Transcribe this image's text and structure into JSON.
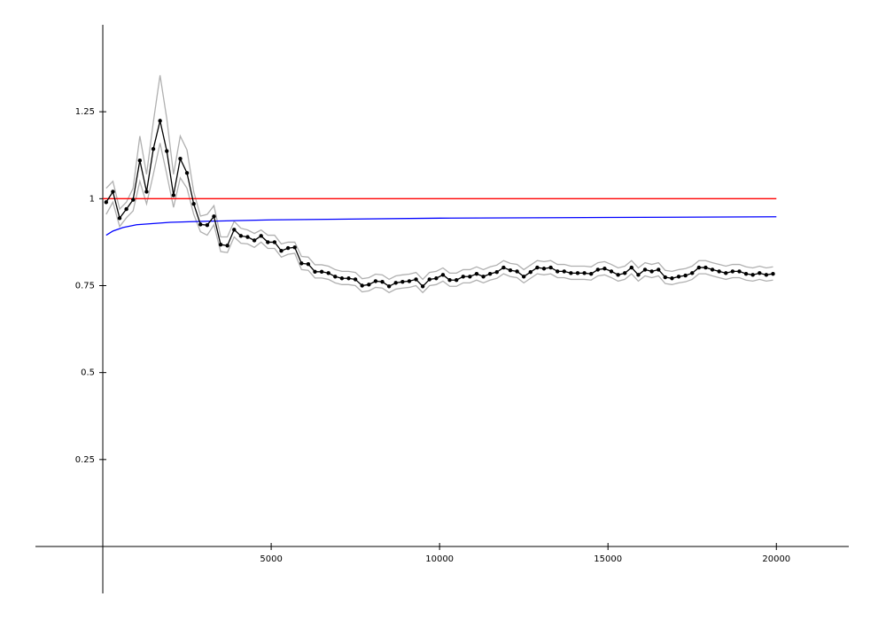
{
  "chart_data": {
    "type": "line",
    "xlim": [
      -2000,
      22150
    ],
    "ylim": [
      -0.135,
      1.5
    ],
    "xticks": [
      5000,
      10000,
      15000,
      20000
    ],
    "yticks": [
      0.25,
      0.5,
      0.75,
      1,
      1.25
    ],
    "series": [
      {
        "color": "#b0b0b0",
        "markers": false,
        "x": [
          100,
          300,
          500,
          700,
          900,
          1100,
          1300,
          1500,
          1700,
          1900,
          2100,
          2300,
          2500,
          2700,
          2900,
          3100,
          3300,
          3500,
          3700,
          3900,
          4100,
          4300,
          4500,
          4700,
          4900,
          5100,
          5300,
          5500,
          5700,
          5900,
          6100,
          6300,
          6500,
          6700,
          6900,
          7100,
          7300,
          7500,
          7700,
          7900,
          8100,
          8300,
          8500,
          8700,
          8900,
          9100,
          9300,
          9500,
          9700,
          9900,
          10100,
          10300,
          10500,
          10700,
          10900,
          11100,
          11300,
          11500,
          11700,
          11900,
          12100,
          12300,
          12500,
          12700,
          12900,
          13100,
          13300,
          13500,
          13700,
          13900,
          14100,
          14300,
          14500,
          14700,
          14900,
          15100,
          15300,
          15500,
          15700,
          15900,
          16100,
          16300,
          16500,
          16700,
          16900,
          17100,
          17300,
          17500,
          17700,
          17900,
          18100,
          18300,
          18500,
          18700,
          18900,
          19100,
          19300,
          19500,
          19700,
          19900
        ],
        "values": [
          1.03,
          1.05,
          0.97,
          0.99,
          1.03,
          1.18,
          1.07,
          1.22,
          1.355,
          1.23,
          1.07,
          1.18,
          1.14,
          1.02,
          0.95,
          0.955,
          0.98,
          0.89,
          0.89,
          0.935,
          0.915,
          0.91,
          0.9,
          0.91,
          0.895,
          0.895,
          0.87,
          0.875,
          0.875,
          0.834,
          0.832,
          0.81,
          0.81,
          0.806,
          0.796,
          0.791,
          0.791,
          0.788,
          0.77,
          0.773,
          0.783,
          0.781,
          0.768,
          0.778,
          0.781,
          0.783,
          0.788,
          0.768,
          0.788,
          0.791,
          0.801,
          0.786,
          0.786,
          0.796,
          0.796,
          0.804,
          0.796,
          0.804,
          0.809,
          0.822,
          0.814,
          0.811,
          0.796,
          0.809,
          0.822,
          0.819,
          0.822,
          0.811,
          0.811,
          0.806,
          0.806,
          0.806,
          0.804,
          0.816,
          0.819,
          0.811,
          0.801,
          0.806,
          0.822,
          0.801,
          0.816,
          0.811,
          0.816,
          0.794,
          0.791,
          0.796,
          0.799,
          0.806,
          0.822,
          0.822,
          0.816,
          0.811,
          0.806,
          0.811,
          0.811,
          0.804,
          0.801,
          0.806,
          0.801,
          0.804
        ]
      },
      {
        "color": "#b0b0b0",
        "markers": false,
        "x": [
          100,
          300,
          500,
          700,
          900,
          1100,
          1300,
          1500,
          1700,
          1900,
          2100,
          2300,
          2500,
          2700,
          2900,
          3100,
          3300,
          3500,
          3700,
          3900,
          4100,
          4300,
          4500,
          4700,
          4900,
          5100,
          5300,
          5500,
          5700,
          5900,
          6100,
          6300,
          6500,
          6700,
          6900,
          7100,
          7300,
          7500,
          7700,
          7900,
          8100,
          8300,
          8500,
          8700,
          8900,
          9100,
          9300,
          9500,
          9700,
          9900,
          10100,
          10300,
          10500,
          10700,
          10900,
          11100,
          11300,
          11500,
          11700,
          11900,
          12100,
          12300,
          12500,
          12700,
          12900,
          13100,
          13300,
          13500,
          13700,
          13900,
          14100,
          14300,
          14500,
          14700,
          14900,
          15100,
          15300,
          15500,
          15700,
          15900,
          16100,
          16300,
          16500,
          16700,
          16900,
          17100,
          17300,
          17500,
          17700,
          17900,
          18100,
          18300,
          18500,
          18700,
          18900,
          19100,
          19300,
          19500,
          19700,
          19900
        ],
        "values": [
          0.955,
          0.99,
          0.92,
          0.945,
          0.965,
          1.05,
          0.985,
          1.07,
          1.16,
          1.07,
          0.975,
          1.06,
          1.03,
          0.955,
          0.905,
          0.895,
          0.925,
          0.848,
          0.845,
          0.89,
          0.872,
          0.87,
          0.86,
          0.875,
          0.857,
          0.857,
          0.832,
          0.84,
          0.843,
          0.796,
          0.794,
          0.772,
          0.772,
          0.768,
          0.758,
          0.753,
          0.753,
          0.75,
          0.732,
          0.735,
          0.745,
          0.743,
          0.73,
          0.74,
          0.743,
          0.745,
          0.75,
          0.73,
          0.75,
          0.753,
          0.763,
          0.748,
          0.748,
          0.758,
          0.758,
          0.766,
          0.758,
          0.766,
          0.771,
          0.784,
          0.776,
          0.773,
          0.758,
          0.771,
          0.784,
          0.781,
          0.784,
          0.773,
          0.773,
          0.768,
          0.768,
          0.768,
          0.766,
          0.778,
          0.781,
          0.773,
          0.763,
          0.768,
          0.784,
          0.763,
          0.778,
          0.773,
          0.778,
          0.756,
          0.753,
          0.758,
          0.761,
          0.768,
          0.784,
          0.784,
          0.778,
          0.773,
          0.768,
          0.773,
          0.773,
          0.766,
          0.763,
          0.768,
          0.763,
          0.766
        ]
      },
      {
        "color": "#ff0000",
        "markers": false,
        "x": [
          0,
          20000
        ],
        "values": [
          1,
          1
        ]
      },
      {
        "color": "#0000ff",
        "markers": false,
        "x": [
          100,
          300,
          600,
          1000,
          2000,
          3000,
          5000,
          10000,
          15000,
          20000
        ],
        "values": [
          0.895,
          0.907,
          0.917,
          0.925,
          0.932,
          0.935,
          0.939,
          0.944,
          0.946,
          0.948
        ]
      },
      {
        "color": "#000000",
        "markers": true,
        "x": [
          100,
          300,
          500,
          700,
          900,
          1100,
          1300,
          1500,
          1700,
          1900,
          2100,
          2300,
          2500,
          2700,
          2900,
          3100,
          3300,
          3500,
          3700,
          3900,
          4100,
          4300,
          4500,
          4700,
          4900,
          5100,
          5300,
          5500,
          5700,
          5900,
          6100,
          6300,
          6500,
          6700,
          6900,
          7100,
          7300,
          7500,
          7700,
          7900,
          8100,
          8300,
          8500,
          8700,
          8900,
          9100,
          9300,
          9500,
          9700,
          9900,
          10100,
          10300,
          10500,
          10700,
          10900,
          11100,
          11300,
          11500,
          11700,
          11900,
          12100,
          12300,
          12500,
          12700,
          12900,
          13100,
          13300,
          13500,
          13700,
          13900,
          14100,
          14300,
          14500,
          14700,
          14900,
          15100,
          15300,
          15500,
          15700,
          15900,
          16100,
          16300,
          16500,
          16700,
          16900,
          17100,
          17300,
          17500,
          17700,
          17900,
          18100,
          18300,
          18500,
          18700,
          18900,
          19100,
          19300,
          19500,
          19700,
          19900
        ],
        "values": [
          0.99,
          1.02,
          0.944,
          0.97,
          0.997,
          1.11,
          1.02,
          1.143,
          1.224,
          1.137,
          1.01,
          1.115,
          1.074,
          0.985,
          0.926,
          0.924,
          0.949,
          0.868,
          0.865,
          0.911,
          0.893,
          0.89,
          0.88,
          0.893,
          0.875,
          0.875,
          0.85,
          0.858,
          0.86,
          0.814,
          0.812,
          0.79,
          0.79,
          0.786,
          0.776,
          0.771,
          0.771,
          0.768,
          0.75,
          0.753,
          0.763,
          0.761,
          0.748,
          0.758,
          0.761,
          0.763,
          0.768,
          0.748,
          0.768,
          0.771,
          0.781,
          0.766,
          0.766,
          0.776,
          0.776,
          0.784,
          0.776,
          0.784,
          0.789,
          0.802,
          0.794,
          0.791,
          0.776,
          0.789,
          0.802,
          0.799,
          0.802,
          0.791,
          0.791,
          0.786,
          0.786,
          0.786,
          0.784,
          0.796,
          0.799,
          0.791,
          0.781,
          0.786,
          0.802,
          0.781,
          0.796,
          0.791,
          0.796,
          0.774,
          0.771,
          0.776,
          0.779,
          0.786,
          0.802,
          0.802,
          0.796,
          0.791,
          0.786,
          0.791,
          0.791,
          0.784,
          0.781,
          0.786,
          0.781,
          0.784
        ]
      }
    ]
  }
}
